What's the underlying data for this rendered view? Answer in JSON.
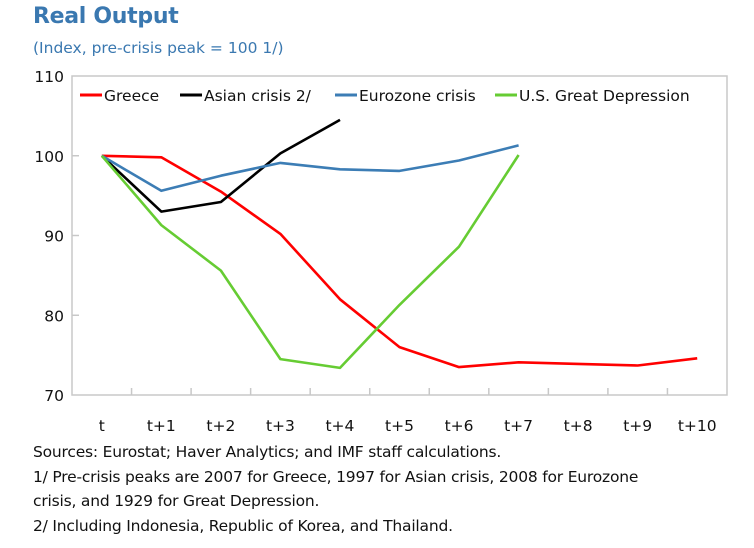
{
  "header": {
    "title": "Real Output",
    "subtitle": "(Index, pre-crisis peak = 100 1/)"
  },
  "notes": [
    "Sources: Eurostat; Haver Analytics; and IMF staff calculations.",
    "1/ Pre-crisis peaks are 2007 for Greece, 1997 for Asian crisis, 2008 for Eurozone",
    "crisis, and 1929 for Great Depression.",
    "2/ Including Indonesia, Republic of Korea, and Thailand."
  ],
  "chart_data": {
    "type": "line",
    "title": "Real Output",
    "subtitle": "(Index, pre-crisis peak = 100 1/)",
    "xlabel": "",
    "ylabel": "",
    "categories": [
      "t",
      "t+1",
      "t+2",
      "t+3",
      "t+4",
      "t+5",
      "t+6",
      "t+7",
      "t+8",
      "t+9",
      "t+10"
    ],
    "ylim": [
      70,
      110
    ],
    "yticks": [
      70,
      80,
      90,
      100,
      110
    ],
    "grid": false,
    "legend_position": "top",
    "series": [
      {
        "name": "Greece",
        "color": "#ff0000",
        "values": [
          100,
          99.8,
          95.5,
          90.2,
          82.0,
          76.0,
          73.5,
          74.1,
          73.9,
          73.7,
          74.6
        ]
      },
      {
        "name": "Asian crisis 2/",
        "color": "#000000",
        "values": [
          100,
          93.0,
          94.2,
          100.3,
          104.5
        ]
      },
      {
        "name": "Eurozone crisis",
        "color": "#3c7db5",
        "values": [
          100,
          95.6,
          97.5,
          99.1,
          98.3,
          98.1,
          99.4,
          101.3
        ]
      },
      {
        "name": "U.S. Great Depression",
        "color": "#66cc33",
        "values": [
          100,
          91.3,
          85.6,
          74.5,
          73.4,
          81.3,
          88.6,
          100.1
        ]
      }
    ]
  }
}
